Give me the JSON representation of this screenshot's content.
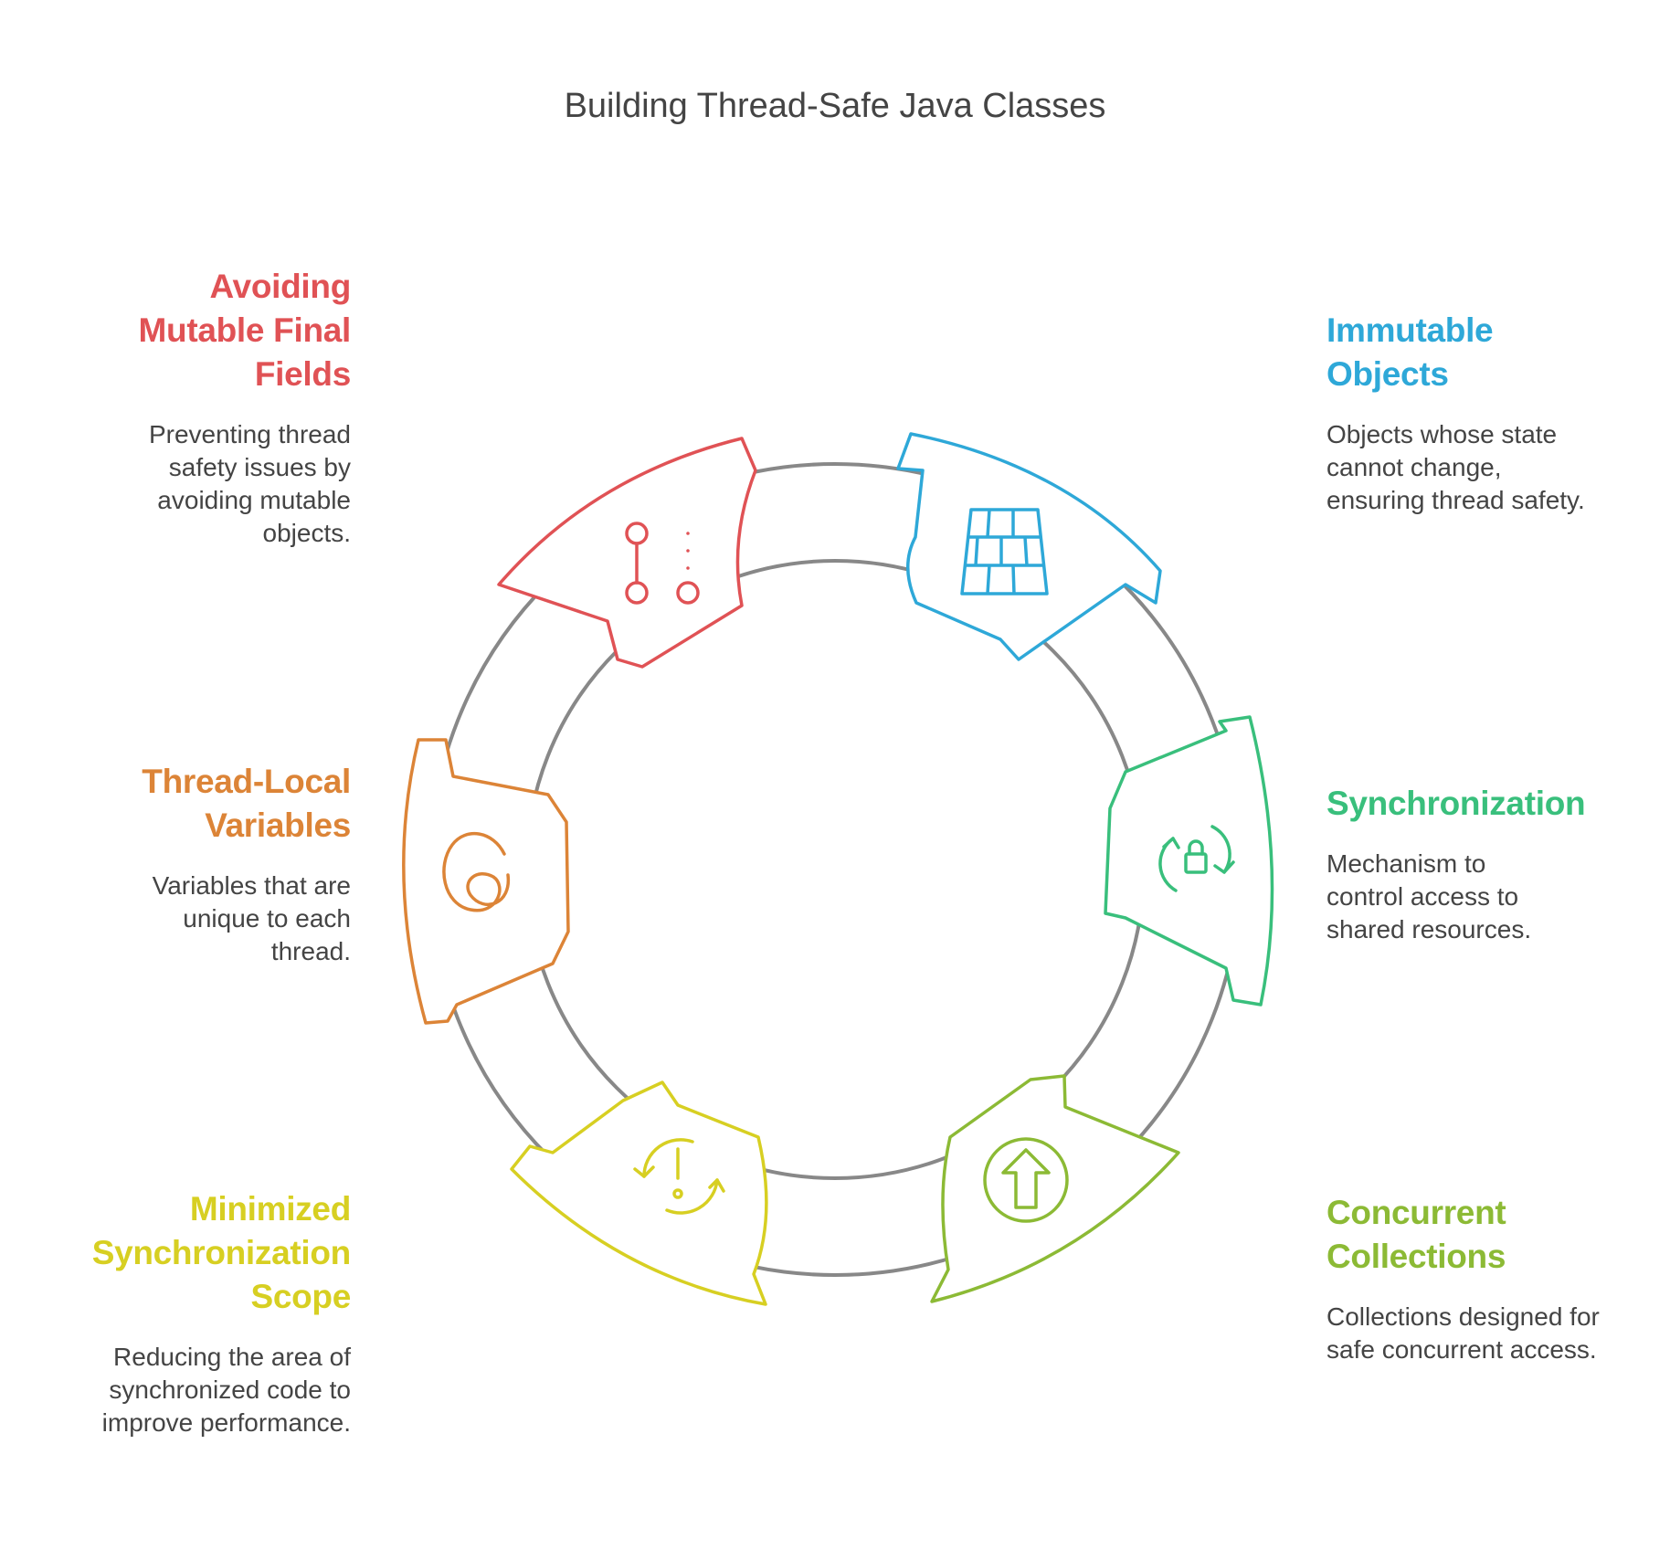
{
  "title": "Building Thread-Safe Java Classes",
  "items": [
    {
      "id": "mutable",
      "title": "Avoiding Mutable Final Fields",
      "description": "Preventing thread safety issues by avoiding mutable objects.",
      "color": "#e05255",
      "icon": "branch-icon"
    },
    {
      "id": "immutable",
      "title": "Immutable Objects",
      "description": "Objects whose state cannot change, ensuring thread safety.",
      "color": "#2ea8d8",
      "icon": "brick-wall-icon"
    },
    {
      "id": "threadlocal",
      "title": "Thread-Local Variables",
      "description": "Variables that are unique to each thread.",
      "color": "#dc8437",
      "icon": "threads-icon"
    },
    {
      "id": "sync",
      "title": "Synchronization",
      "description": "Mechanism to control access to shared resources.",
      "color": "#39bf7c",
      "icon": "lock-refresh-icon"
    },
    {
      "id": "minimized",
      "title": "Minimized Synchronization Scope",
      "description": "Reducing the area of synchronized code to improve performance.",
      "color": "#d7cf22",
      "icon": "alert-refresh-icon"
    },
    {
      "id": "concurrent",
      "title": "Concurrent Collections",
      "description": "Collections designed for safe concurrent access.",
      "color": "#8cba35",
      "icon": "arrow-up-circle-icon"
    }
  ],
  "ring_color": "#888888"
}
